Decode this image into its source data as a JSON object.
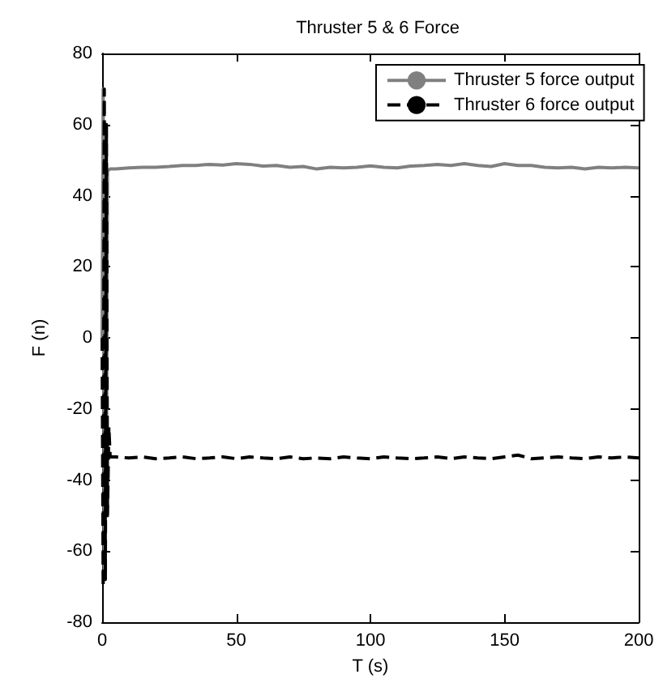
{
  "chart_data": {
    "type": "line",
    "title": "Thruster 5 & 6 Force",
    "xlabel": "T (s)",
    "ylabel": "F (n)",
    "xlim": [
      0,
      200
    ],
    "xticks": [
      0,
      50,
      100,
      150,
      200
    ],
    "ylim": [
      -80,
      80
    ],
    "yticks": [
      -80,
      -60,
      -40,
      -20,
      0,
      20,
      40,
      60,
      80
    ],
    "grid": false,
    "legend": "top right",
    "marker": "none",
    "series": [
      {
        "name": "Thruster 5 force output",
        "color": "#808080",
        "line_style": "solid",
        "x": [
          0,
          0.4,
          0.8,
          1.2,
          1.6,
          2,
          3,
          5,
          10,
          15,
          20,
          25,
          30,
          35,
          40,
          45,
          50,
          55,
          60,
          65,
          70,
          75,
          80,
          85,
          90,
          95,
          100,
          105,
          110,
          115,
          120,
          125,
          130,
          135,
          140,
          145,
          150,
          155,
          160,
          165,
          170,
          175,
          180,
          185,
          190,
          195,
          200
        ],
        "values": [
          0,
          70,
          -65,
          60,
          -40,
          47,
          47.5,
          47.5,
          47.8,
          48,
          48,
          48.2,
          48.5,
          48.5,
          48.8,
          48.6,
          49,
          48.8,
          48.3,
          48.5,
          48,
          48.2,
          47.5,
          48,
          47.8,
          48,
          48.4,
          48,
          47.8,
          48.3,
          48.5,
          48.8,
          48.5,
          49,
          48.5,
          48.2,
          49,
          48.5,
          48.5,
          48,
          47.8,
          48,
          47.5,
          48,
          47.8,
          48,
          47.8
        ]
      },
      {
        "name": "Thruster 6 force output",
        "color": "#000000",
        "line_style": "dashed",
        "x": [
          0,
          0.4,
          0.8,
          1.2,
          1.6,
          2,
          2.5,
          3,
          5,
          10,
          15,
          20,
          25,
          30,
          35,
          40,
          45,
          50,
          55,
          60,
          65,
          70,
          75,
          80,
          85,
          90,
          95,
          100,
          105,
          110,
          115,
          120,
          125,
          130,
          135,
          140,
          145,
          150,
          155,
          160,
          165,
          170,
          175,
          180,
          185,
          190,
          195,
          200
        ],
        "values": [
          0,
          -70,
          70,
          -68,
          60,
          -50,
          -25,
          -33.5,
          -33.5,
          -33.8,
          -33.5,
          -34,
          -33.8,
          -33.5,
          -34,
          -33.8,
          -33.5,
          -34,
          -33.5,
          -33.8,
          -34,
          -33.5,
          -34,
          -33.8,
          -34,
          -33.5,
          -33.8,
          -34,
          -33.5,
          -33.8,
          -34,
          -33.8,
          -33.5,
          -34,
          -33.5,
          -33.8,
          -34,
          -33.5,
          -33,
          -34,
          -33.8,
          -33.5,
          -33.8,
          -34,
          -33.5,
          -33.8,
          -33.5,
          -33.8
        ]
      }
    ]
  }
}
